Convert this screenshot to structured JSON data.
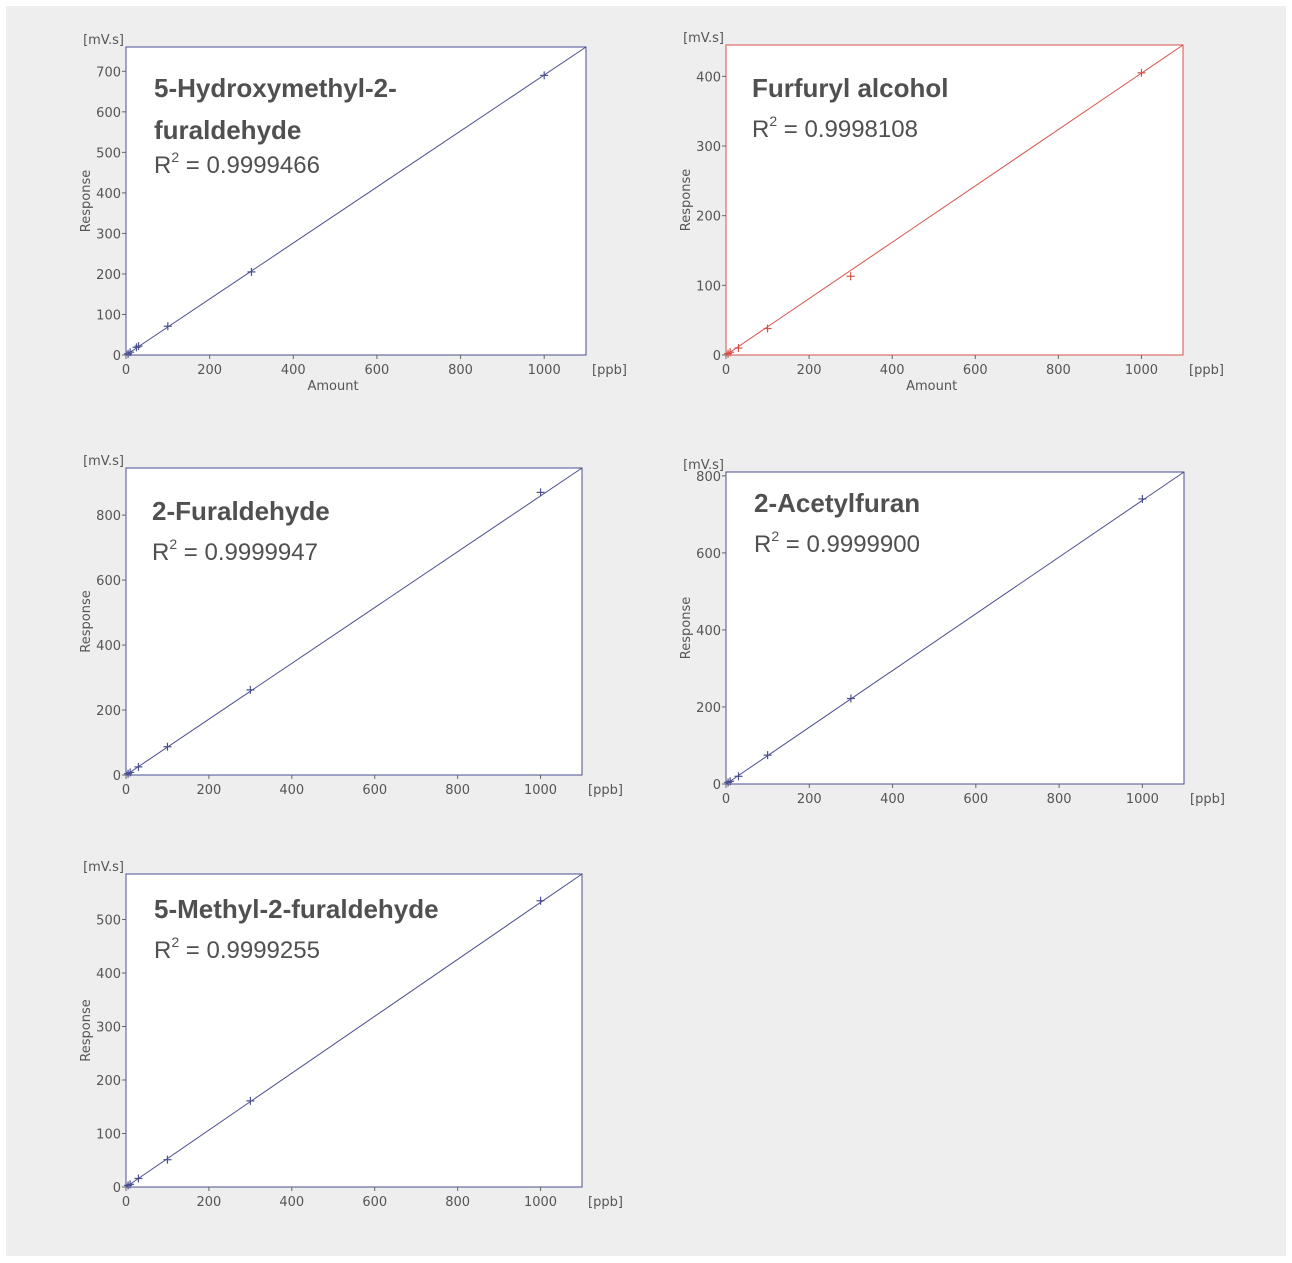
{
  "chart_data": [
    {
      "type": "scatter",
      "title_lines": [
        "5-Hydroxymethyl-2-",
        "furaldehyde"
      ],
      "r2_label": "R",
      "r2_sup": "2",
      "r2_value": " = 0.9999466",
      "y_unit": "[mV.s]",
      "x_unit": "[ppb]",
      "ylabel": "Response",
      "xlabel": "Amount",
      "xlim": [
        0,
        1100
      ],
      "ylim": [
        0,
        760
      ],
      "xticks": [
        0,
        200,
        400,
        600,
        800,
        1000
      ],
      "yticks": [
        0,
        100,
        200,
        300,
        400,
        500,
        600,
        700
      ],
      "color": "#4a4f8f",
      "frame_color": "#4a4f8f",
      "points": [
        {
          "x": 5,
          "y": 3
        },
        {
          "x": 10,
          "y": 7
        },
        {
          "x": 25,
          "y": 19
        },
        {
          "x": 30,
          "y": 22
        },
        {
          "x": 100,
          "y": 71
        },
        {
          "x": 300,
          "y": 205
        },
        {
          "x": 1000,
          "y": 690
        }
      ],
      "fit": {
        "x": [
          0,
          1100
        ],
        "y": [
          0,
          760
        ]
      }
    },
    {
      "type": "scatter",
      "title_lines": [
        "Furfuryl alcohol"
      ],
      "r2_label": "R",
      "r2_sup": "2",
      "r2_value": " = 0.9998108",
      "y_unit": "[mV.s]",
      "x_unit": "[ppb]",
      "ylabel": "Response",
      "xlabel": "Amount",
      "xlim": [
        0,
        1100
      ],
      "ylim": [
        0,
        445
      ],
      "xticks": [
        0,
        200,
        400,
        600,
        800,
        1000
      ],
      "yticks": [
        0,
        100,
        200,
        300,
        400
      ],
      "color": "#d6524a",
      "frame_color": "#d6524a",
      "points": [
        {
          "x": 5,
          "y": 2
        },
        {
          "x": 10,
          "y": 4
        },
        {
          "x": 30,
          "y": 10
        },
        {
          "x": 100,
          "y": 38
        },
        {
          "x": 300,
          "y": 113
        },
        {
          "x": 1000,
          "y": 405
        }
      ],
      "fit": {
        "x": [
          0,
          1100
        ],
        "y": [
          0,
          445
        ]
      }
    },
    {
      "type": "scatter",
      "title_lines": [
        "2-Furaldehyde"
      ],
      "r2_label": "R",
      "r2_sup": "2",
      "r2_value": " = 0.9999947",
      "y_unit": "[mV.s]",
      "x_unit": "[ppb]",
      "ylabel": "Response",
      "xlabel": "",
      "xlim": [
        0,
        1100
      ],
      "ylim": [
        0,
        945
      ],
      "xticks": [
        0,
        200,
        400,
        600,
        800,
        1000
      ],
      "yticks": [
        0,
        200,
        400,
        600,
        800
      ],
      "color": "#4a4f8f",
      "frame_color": "#4a4f8f",
      "points": [
        {
          "x": 5,
          "y": 4
        },
        {
          "x": 10,
          "y": 8
        },
        {
          "x": 30,
          "y": 25
        },
        {
          "x": 100,
          "y": 87
        },
        {
          "x": 300,
          "y": 262
        },
        {
          "x": 1000,
          "y": 870
        }
      ],
      "fit": {
        "x": [
          0,
          1100
        ],
        "y": [
          0,
          945
        ]
      }
    },
    {
      "type": "scatter",
      "title_lines": [
        "2-Acetylfuran"
      ],
      "r2_label": "R",
      "r2_sup": "2",
      "r2_value": " = 0.9999900",
      "y_unit": "[mV.s]",
      "x_unit": "[ppb]",
      "ylabel": "Response",
      "xlabel": "",
      "xlim": [
        0,
        1100
      ],
      "ylim": [
        0,
        810
      ],
      "xticks": [
        0,
        200,
        400,
        600,
        800,
        1000
      ],
      "yticks": [
        0,
        200,
        400,
        600,
        800
      ],
      "color": "#4a4f8f",
      "frame_color": "#4a4f8f",
      "points": [
        {
          "x": 5,
          "y": 4
        },
        {
          "x": 10,
          "y": 7
        },
        {
          "x": 30,
          "y": 20
        },
        {
          "x": 100,
          "y": 75
        },
        {
          "x": 300,
          "y": 222
        },
        {
          "x": 1000,
          "y": 740
        }
      ],
      "fit": {
        "x": [
          0,
          1100
        ],
        "y": [
          0,
          810
        ]
      }
    },
    {
      "type": "scatter",
      "title_lines": [
        "5-Methyl-2-furaldehyde"
      ],
      "r2_label": "R",
      "r2_sup": "2",
      "r2_value": " = 0.9999255",
      "y_unit": "[mV.s]",
      "x_unit": "[ppb]",
      "ylabel": "Response",
      "xlabel": "",
      "xlim": [
        0,
        1100
      ],
      "ylim": [
        0,
        585
      ],
      "xticks": [
        0,
        200,
        400,
        600,
        800,
        1000
      ],
      "yticks": [
        0,
        100,
        200,
        300,
        400,
        500
      ],
      "color": "#4a4f8f",
      "frame_color": "#4a4f8f",
      "points": [
        {
          "x": 5,
          "y": 3
        },
        {
          "x": 10,
          "y": 5
        },
        {
          "x": 30,
          "y": 16
        },
        {
          "x": 100,
          "y": 51
        },
        {
          "x": 300,
          "y": 161
        },
        {
          "x": 1000,
          "y": 535
        }
      ],
      "fit": {
        "x": [
          0,
          1100
        ],
        "y": [
          0,
          585
        ]
      }
    }
  ]
}
